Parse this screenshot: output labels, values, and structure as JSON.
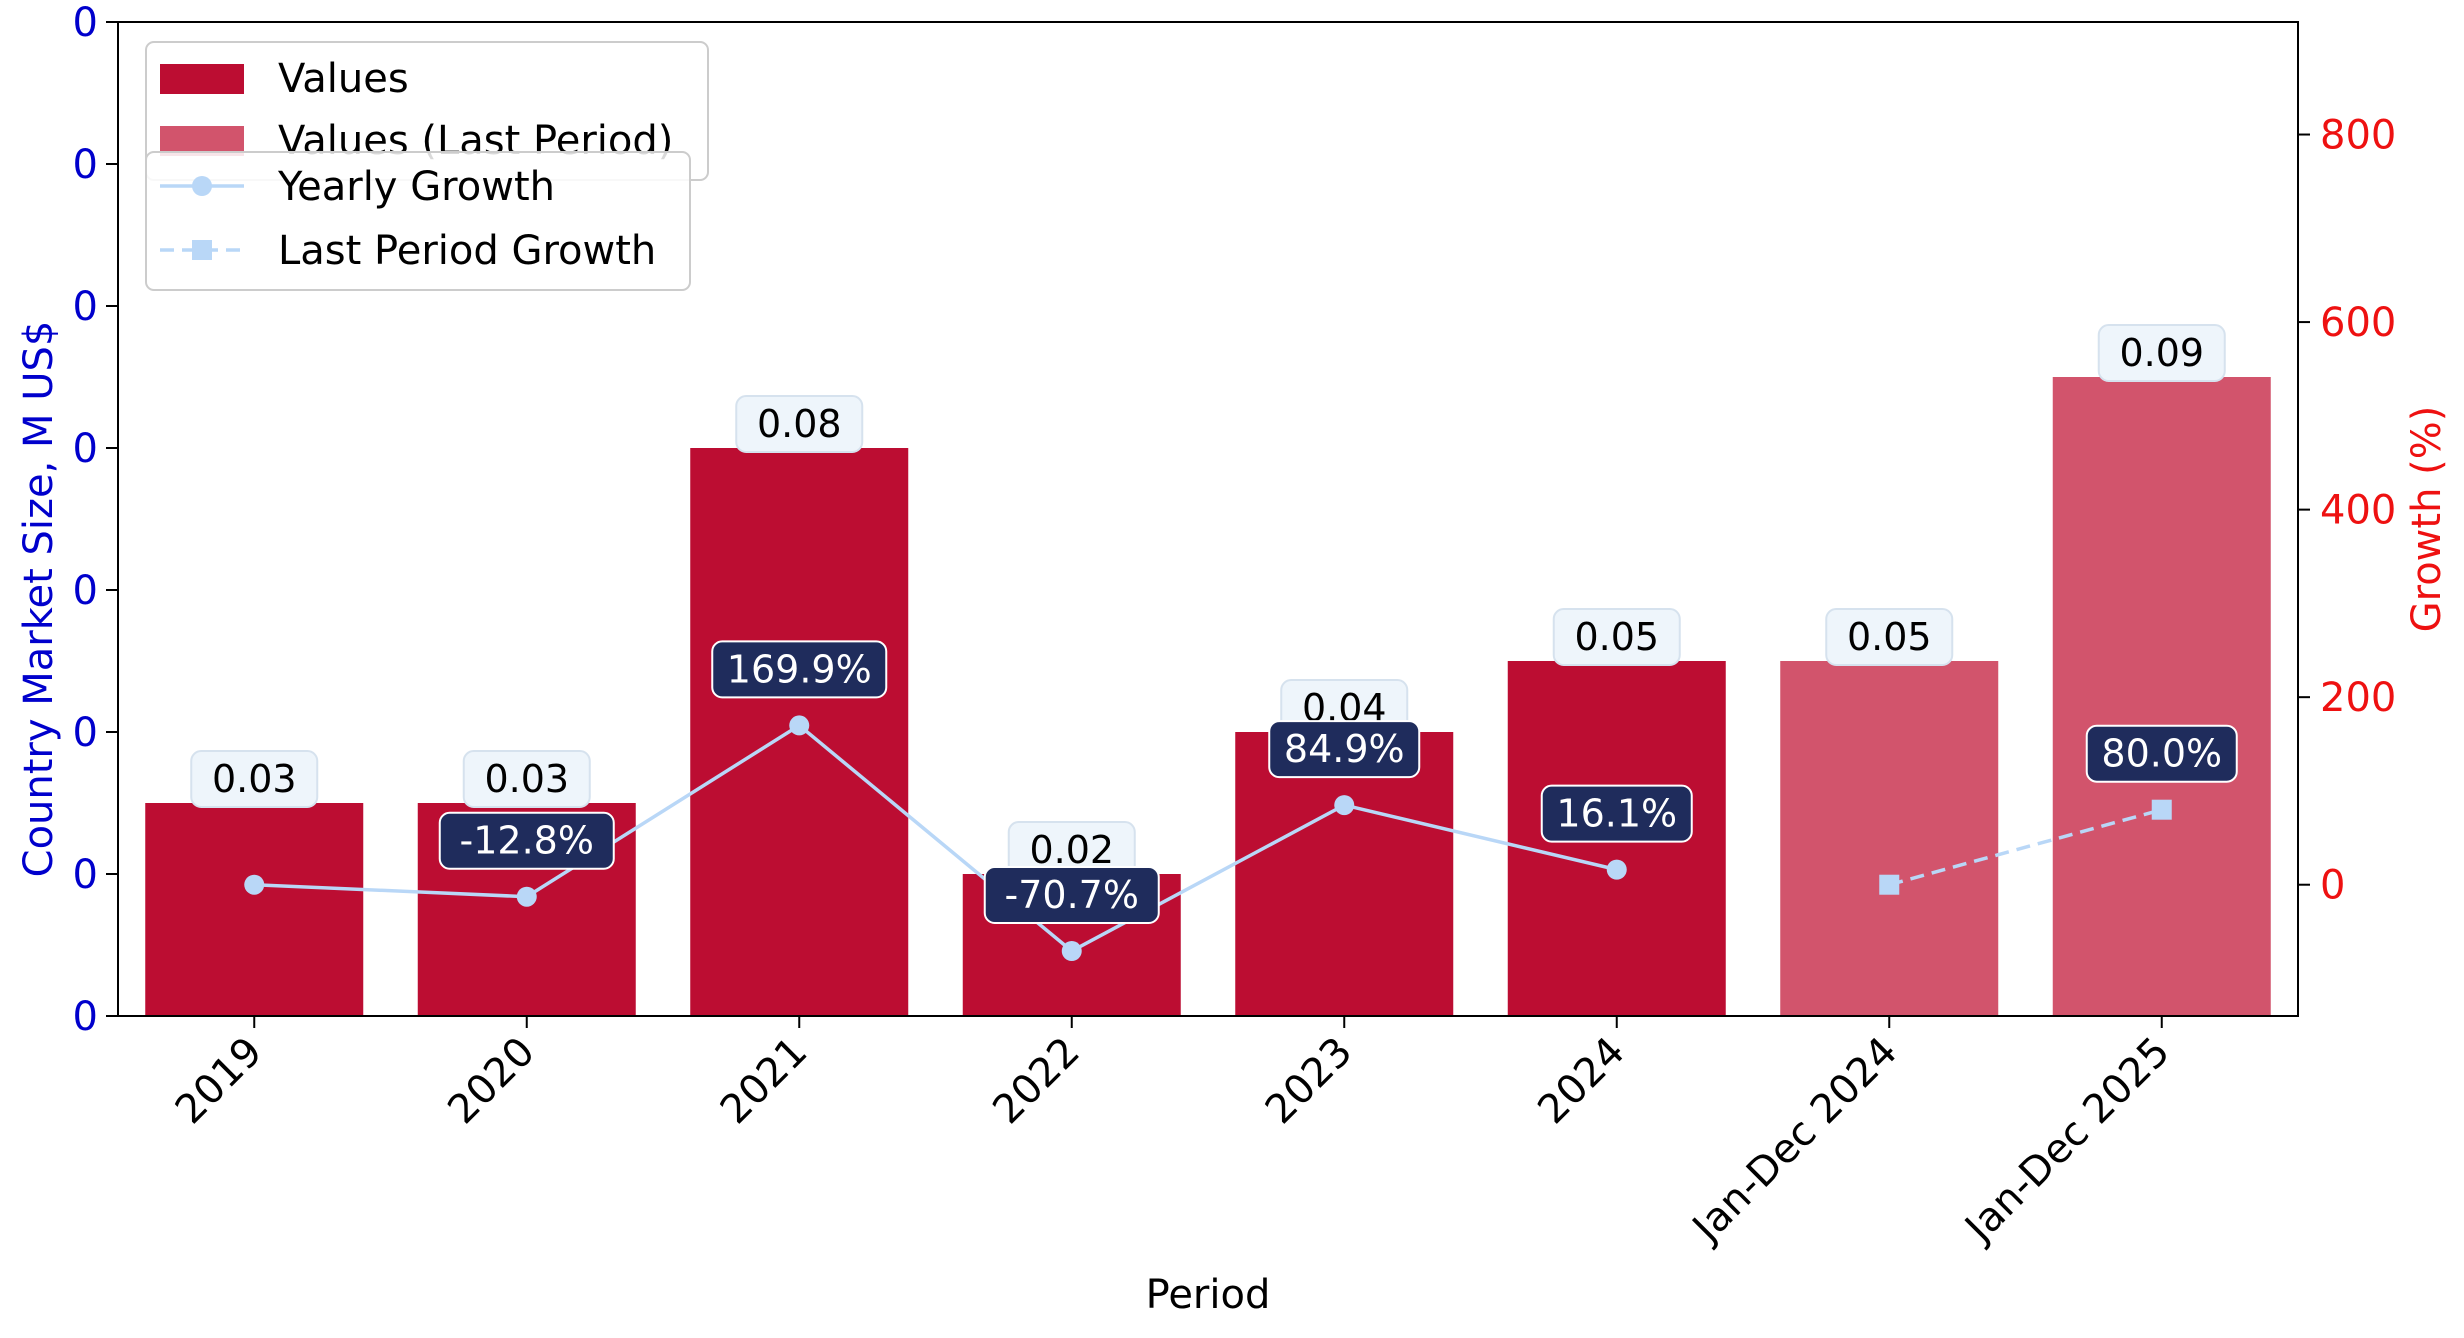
{
  "chart_data": {
    "type": "bar",
    "categories": [
      "2019",
      "2020",
      "2021",
      "2022",
      "2023",
      "2024",
      "Jan-Dec 2024",
      "Jan-Dec 2025"
    ],
    "series": [
      {
        "name": "Values",
        "values": [
          0.03,
          0.03,
          0.08,
          0.02,
          0.04,
          0.05,
          null,
          null
        ],
        "labels": [
          "0.03",
          "0.03",
          "0.08",
          "0.02",
          "0.04",
          "0.05",
          "",
          ""
        ],
        "color": "#bc0d32"
      },
      {
        "name": "Values (Last Period)",
        "values": [
          null,
          null,
          null,
          null,
          null,
          null,
          0.05,
          0.09
        ],
        "labels": [
          "",
          "",
          "",
          "",
          "",
          "",
          "0.05",
          "0.09"
        ],
        "color": "#d2546c"
      },
      {
        "name": "Yearly Growth",
        "axis": "right",
        "values": [
          0,
          -12.8,
          169.9,
          -70.7,
          84.9,
          16.1,
          null,
          null
        ],
        "labels": [
          "",
          "-12.8%",
          "169.9%",
          "-70.7%",
          "84.9%",
          "16.1%",
          "",
          ""
        ],
        "color": "#b9d7f7",
        "marker": "circle",
        "dash": "solid"
      },
      {
        "name": "Last Period Growth",
        "axis": "right",
        "values": [
          null,
          null,
          null,
          null,
          null,
          null,
          0,
          80.0
        ],
        "labels": [
          "",
          "",
          "",
          "",
          "",
          "",
          "",
          "80.0%"
        ],
        "color": "#b9d7f7",
        "marker": "square",
        "dash": "dashed"
      }
    ],
    "xlabel": "Period",
    "ylabel": "Country Market Size, M US$",
    "y2label": "Growth (%)",
    "ylim": [
      0,
      0.14
    ],
    "y_ticks": [
      0,
      0.02,
      0.04,
      0.06,
      0.08,
      0.1,
      0.12,
      0.14
    ],
    "y_tick_labels": [
      "0",
      "0",
      "0",
      "0",
      "0",
      "0",
      "0",
      "0"
    ],
    "y2lim": [
      -140,
      920
    ],
    "y2_ticks": [
      0,
      200,
      400,
      600,
      800
    ],
    "y2_tick_labels": [
      "0",
      "200",
      "400",
      "600",
      "800"
    ],
    "legend_position": "top-left",
    "grid": false,
    "colors": {
      "left_axis": "#0000cc",
      "right_axis": "#ee1111",
      "growth_label_bg": "#1f2c5c",
      "value_label_bg": "#eef5fb"
    }
  }
}
